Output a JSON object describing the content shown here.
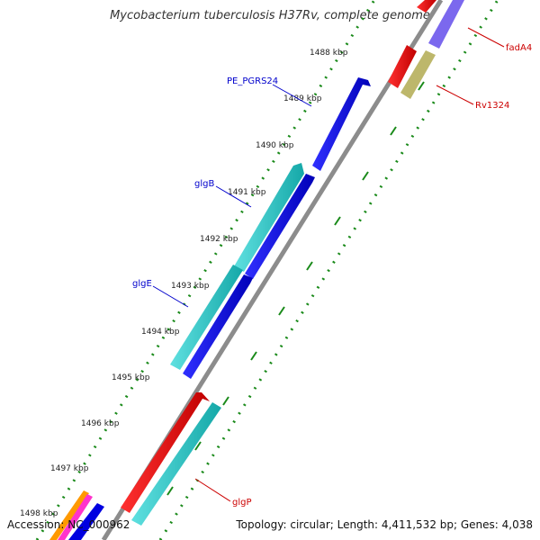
{
  "title": "Mycobacterium tuberculosis H37Rv, complete genome",
  "accession": "Accession: NC_000962",
  "summary": "Topology: circular; Length: 4,411,532 bp; Genes: 4,038",
  "ticks": [
    "1488 kbp",
    "1489 kbp",
    "1490 kbp",
    "1491 kbp",
    "1492 kbp",
    "1493 kbp",
    "1494 kbp",
    "1495 kbp",
    "1496 kbp",
    "1497 kbp",
    "1498 kbp"
  ],
  "gene_labels": {
    "pe_pgrs24": "PE_PGRS24",
    "glgB": "glgB",
    "glgE": "glgE",
    "fadA4": "fadA4",
    "rv1324": "Rv1324",
    "glgP": "glgP"
  },
  "colors": {
    "backbone": "#8c8c8c",
    "ticks": "#1a8a1a",
    "cds_blue": "#0000e0",
    "cds_cyan": "#20c8c8",
    "cds_red": "#e00000",
    "cds_olive": "#bdb76b",
    "cds_purple": "#7b68ee",
    "label_blue": "#0000cc",
    "label_red": "#cc0000"
  }
}
